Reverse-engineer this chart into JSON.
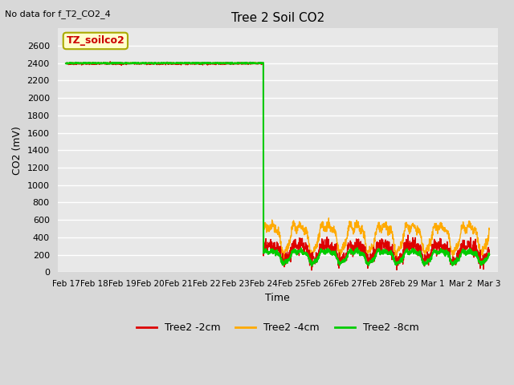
{
  "title": "Tree 2 Soil CO2",
  "no_data_label": "No data for f_T2_CO2_4",
  "xlabel": "Time",
  "ylabel": "CO2 (mV)",
  "ylim": [
    0,
    2800
  ],
  "yticks": [
    0,
    200,
    400,
    600,
    800,
    1000,
    1200,
    1400,
    1600,
    1800,
    2000,
    2200,
    2400,
    2600
  ],
  "plot_bg_color": "#e8e8e8",
  "fig_bg_color": "#d8d8d8",
  "grid_color": "#ffffff",
  "annotation_label": "TZ_soilco2",
  "annotation_fg": "#cc0000",
  "annotation_bg": "#ffffcc",
  "annotation_edge": "#aaaa00",
  "series": {
    "red": {
      "label": "Tree2 -2cm",
      "color": "#dd0000",
      "phase1_value": 2395,
      "phase2_mean": 240,
      "phase2_noise": 40,
      "lw": 1.0
    },
    "orange": {
      "label": "Tree2 -4cm",
      "color": "#ffaa00",
      "phase1_value": 2400,
      "phase2_mean": 420,
      "phase2_noise": 25,
      "lw": 1.0
    },
    "green": {
      "label": "Tree2 -8cm",
      "color": "#00cc00",
      "phase1_value": 2400,
      "phase2_mean": 190,
      "phase2_noise": 12,
      "lw": 1.5
    }
  },
  "transition_day": 7.0,
  "x_tick_labels": [
    "Feb 17",
    "Feb 18",
    "Feb 19",
    "Feb 20",
    "Feb 21",
    "Feb 22",
    "Feb 23",
    "Feb 24",
    "Feb 25",
    "Feb 26",
    "Feb 27",
    "Feb 28",
    "Feb 29",
    "Mar 1",
    "Mar 2",
    "Mar 3"
  ],
  "x_tick_positions": [
    0,
    1,
    2,
    3,
    4,
    5,
    6,
    7,
    8,
    9,
    10,
    11,
    12,
    13,
    14,
    15
  ]
}
